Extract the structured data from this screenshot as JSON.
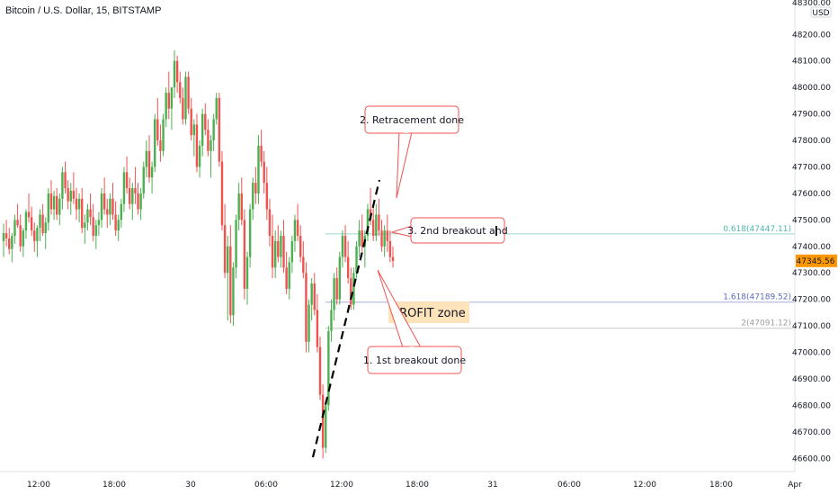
{
  "header": {
    "title": "Bitcoin / U.S. Dollar, 15, BITSTAMP"
  },
  "axis": {
    "currency": "USD",
    "top_partial_label": "48300.00",
    "y_ticks": [
      "48200.00",
      "48100.00",
      "48000.00",
      "47900.00",
      "47800.00",
      "47700.00",
      "47600.00",
      "47500.00",
      "47400.00",
      "47300.00",
      "47200.00",
      "47100.00",
      "47000.00",
      "46900.00",
      "46800.00",
      "46700.00",
      "46600.00"
    ],
    "x_ticks": [
      "12:00",
      "18:00",
      "30",
      "06:00",
      "12:00",
      "18:00",
      "31",
      "06:00",
      "12:00",
      "18:00",
      "Apr"
    ],
    "current_price": "47345.56"
  },
  "colors": {
    "up": "#26a69a",
    "up_candle": "#4caf50",
    "down": "#ef5350",
    "fib_0618": "#4db6ac",
    "fib_1618": "#5c6bc0",
    "fib_2": "#9e9e9e",
    "profit_zone": "#ffe0b2",
    "price_badge": "#ff9800",
    "callout_border": "#ef5350"
  },
  "chart_data": {
    "type": "candlestick",
    "symbol": "Bitcoin / U.S. Dollar",
    "interval": "15",
    "exchange": "BITSTAMP",
    "ylim": [
      46550,
      48330
    ],
    "last_price": 47345.56,
    "fib_levels": [
      {
        "label": "0.618(47447.11)",
        "level": 0.618,
        "price": 47447.11
      },
      {
        "label": "1.618(47189.52)",
        "level": 1.618,
        "price": 47189.52
      },
      {
        "label": "2(47091.12)",
        "level": 2,
        "price": 47091.12
      }
    ],
    "profit_zone": {
      "label": "PROFIT zone",
      "from": 47091.12,
      "to": 47189.52
    },
    "annotations": [
      {
        "id": "retracement",
        "text": "2. Retracement done"
      },
      {
        "id": "second-breakout",
        "text": "3. 2nd breakout and"
      },
      {
        "id": "first-breakout",
        "text": "1. 1st breakout done"
      }
    ],
    "trendline": {
      "from": {
        "x": "29 09:15",
        "y": 46590
      },
      "to": {
        "x": "29 14:15",
        "y": 47640
      }
    },
    "x_range": [
      "29 06:00",
      "Apr 01 00:00"
    ],
    "candles_ohlc": [
      [
        47420,
        47485,
        47360,
        47450
      ],
      [
        47450,
        47500,
        47400,
        47430
      ],
      [
        47430,
        47470,
        47370,
        47390
      ],
      [
        47390,
        47450,
        47340,
        47440
      ],
      [
        47440,
        47520,
        47410,
        47500
      ],
      [
        47500,
        47560,
        47470,
        47480
      ],
      [
        47480,
        47520,
        47380,
        47400
      ],
      [
        47400,
        47470,
        47360,
        47460
      ],
      [
        47460,
        47540,
        47430,
        47530
      ],
      [
        47530,
        47600,
        47490,
        47510
      ],
      [
        47510,
        47550,
        47440,
        47460
      ],
      [
        47460,
        47490,
        47380,
        47420
      ],
      [
        47420,
        47480,
        47360,
        47470
      ],
      [
        47470,
        47540,
        47420,
        47520
      ],
      [
        47520,
        47560,
        47440,
        47450
      ],
      [
        47450,
        47510,
        47390,
        47490
      ],
      [
        47490,
        47620,
        47460,
        47600
      ],
      [
        47600,
        47650,
        47520,
        47540
      ],
      [
        47540,
        47610,
        47500,
        47590
      ],
      [
        47590,
        47620,
        47500,
        47520
      ],
      [
        47520,
        47600,
        47480,
        47580
      ],
      [
        47580,
        47700,
        47540,
        47680
      ],
      [
        47680,
        47720,
        47600,
        47620
      ],
      [
        47620,
        47650,
        47540,
        47570
      ],
      [
        47570,
        47640,
        47520,
        47610
      ],
      [
        47610,
        47680,
        47560,
        47580
      ],
      [
        47580,
        47620,
        47500,
        47540
      ],
      [
        47540,
        47600,
        47490,
        47580
      ],
      [
        47580,
        47620,
        47450,
        47470
      ],
      [
        47470,
        47520,
        47410,
        47490
      ],
      [
        47490,
        47560,
        47460,
        47540
      ],
      [
        47540,
        47600,
        47480,
        47510
      ],
      [
        47510,
        47560,
        47420,
        47440
      ],
      [
        47440,
        47500,
        47390,
        47480
      ],
      [
        47480,
        47530,
        47440,
        47500
      ],
      [
        47500,
        47620,
        47470,
        47600
      ],
      [
        47600,
        47660,
        47520,
        47540
      ],
      [
        47540,
        47580,
        47470,
        47520
      ],
      [
        47520,
        47600,
        47480,
        47580
      ],
      [
        47580,
        47640,
        47500,
        47520
      ],
      [
        47520,
        47570,
        47440,
        47460
      ],
      [
        47460,
        47520,
        47420,
        47500
      ],
      [
        47500,
        47580,
        47470,
        47560
      ],
      [
        47560,
        47700,
        47530,
        47680
      ],
      [
        47680,
        47740,
        47600,
        47620
      ],
      [
        47620,
        47660,
        47540,
        47560
      ],
      [
        47560,
        47640,
        47500,
        47620
      ],
      [
        47620,
        47700,
        47560,
        47600
      ],
      [
        47600,
        47640,
        47520,
        47540
      ],
      [
        47540,
        47620,
        47500,
        47600
      ],
      [
        47600,
        47720,
        47580,
        47700
      ],
      [
        47700,
        47800,
        47660,
        47760
      ],
      [
        47760,
        47820,
        47640,
        47660
      ],
      [
        47660,
        47720,
        47600,
        47700
      ],
      [
        47700,
        47900,
        47680,
        47880
      ],
      [
        47880,
        47960,
        47780,
        47800
      ],
      [
        47800,
        47860,
        47720,
        47760
      ],
      [
        47760,
        47900,
        47740,
        47880
      ],
      [
        47880,
        48000,
        47850,
        47980
      ],
      [
        47980,
        48060,
        47880,
        47920
      ],
      [
        47920,
        48000,
        47840,
        48000
      ],
      [
        48000,
        48140,
        47960,
        48100
      ],
      [
        48100,
        48120,
        47980,
        48020
      ],
      [
        48020,
        48060,
        47940,
        47960
      ],
      [
        47960,
        48000,
        47860,
        47880
      ],
      [
        47880,
        48060,
        47860,
        48040
      ],
      [
        48040,
        48060,
        47900,
        47920
      ],
      [
        47920,
        47960,
        47800,
        47820
      ],
      [
        47820,
        47880,
        47740,
        47860
      ],
      [
        47860,
        47900,
        47680,
        47700
      ],
      [
        47700,
        47800,
        47660,
        47780
      ],
      [
        47780,
        47920,
        47740,
        47900
      ],
      [
        47900,
        47940,
        47820,
        47840
      ],
      [
        47840,
        47880,
        47740,
        47760
      ],
      [
        47760,
        47820,
        47660,
        47800
      ],
      [
        47800,
        47900,
        47760,
        47880
      ],
      [
        47880,
        47980,
        47860,
        47960
      ],
      [
        47960,
        47980,
        47700,
        47720
      ],
      [
        47720,
        47760,
        47460,
        47480
      ],
      [
        47480,
        47560,
        47280,
        47300
      ],
      [
        47300,
        47440,
        47120,
        47400
      ],
      [
        47400,
        47480,
        47110,
        47140
      ],
      [
        47140,
        47340,
        47100,
        47320
      ],
      [
        47320,
        47520,
        47280,
        47500
      ],
      [
        47500,
        47640,
        47460,
        47600
      ],
      [
        47600,
        47660,
        47480,
        47500
      ],
      [
        47500,
        47540,
        47200,
        47240
      ],
      [
        47240,
        47380,
        47180,
        47360
      ],
      [
        47360,
        47560,
        47320,
        47540
      ],
      [
        47540,
        47660,
        47500,
        47640
      ],
      [
        47640,
        47700,
        47560,
        47600
      ],
      [
        47600,
        47820,
        47560,
        47780
      ],
      [
        47780,
        47840,
        47700,
        47720
      ],
      [
        47720,
        47760,
        47600,
        47640
      ],
      [
        47640,
        47700,
        47500,
        47540
      ],
      [
        47540,
        47580,
        47400,
        47440
      ],
      [
        47440,
        47520,
        47280,
        47320
      ],
      [
        47320,
        47460,
        47280,
        47420
      ],
      [
        47420,
        47480,
        47340,
        47360
      ],
      [
        47360,
        47460,
        47320,
        47440
      ],
      [
        47440,
        47500,
        47300,
        47320
      ],
      [
        47320,
        47380,
        47220,
        47240
      ],
      [
        47240,
        47360,
        47200,
        47340
      ],
      [
        47340,
        47440,
        47300,
        47420
      ],
      [
        47420,
        47520,
        47380,
        47500
      ],
      [
        47500,
        47560,
        47420,
        47440
      ],
      [
        47440,
        47480,
        47340,
        47360
      ],
      [
        47360,
        47420,
        47280,
        47300
      ],
      [
        47300,
        47340,
        47000,
        47040
      ],
      [
        47040,
        47200,
        47000,
        47180
      ],
      [
        47180,
        47280,
        47120,
        47260
      ],
      [
        47260,
        47300,
        47140,
        47160
      ],
      [
        47160,
        47220,
        47000,
        47020
      ],
      [
        47020,
        47060,
        46820,
        46840
      ],
      [
        46840,
        46880,
        46600,
        46640
      ],
      [
        46640,
        46820,
        46620,
        46800
      ],
      [
        46800,
        47100,
        46780,
        47080
      ],
      [
        47080,
        47200,
        47040,
        47160
      ],
      [
        47160,
        47300,
        47120,
        47280
      ],
      [
        47280,
        47320,
        47180,
        47200
      ],
      [
        47200,
        47380,
        47180,
        47360
      ],
      [
        47360,
        47460,
        47320,
        47440
      ],
      [
        47440,
        47480,
        47340,
        47360
      ],
      [
        47360,
        47420,
        47260,
        47280
      ],
      [
        47280,
        47320,
        47160,
        47180
      ],
      [
        47180,
        47320,
        47160,
        47300
      ],
      [
        47300,
        47420,
        47280,
        47400
      ],
      [
        47400,
        47500,
        47360,
        47460
      ],
      [
        47460,
        47520,
        47380,
        47400
      ],
      [
        47400,
        47460,
        47320,
        47440
      ],
      [
        47440,
        47560,
        47420,
        47540
      ],
      [
        47540,
        47620,
        47480,
        47500
      ],
      [
        47500,
        47560,
        47420,
        47440
      ],
      [
        47440,
        47560,
        47420,
        47520
      ],
      [
        47520,
        47580,
        47440,
        47460
      ],
      [
        47460,
        47500,
        47380,
        47400
      ],
      [
        47400,
        47480,
        47360,
        47460
      ],
      [
        47460,
        47520,
        47380,
        47420
      ],
      [
        47420,
        47460,
        47340,
        47360
      ],
      [
        47360,
        47400,
        47320,
        47345
      ]
    ]
  }
}
